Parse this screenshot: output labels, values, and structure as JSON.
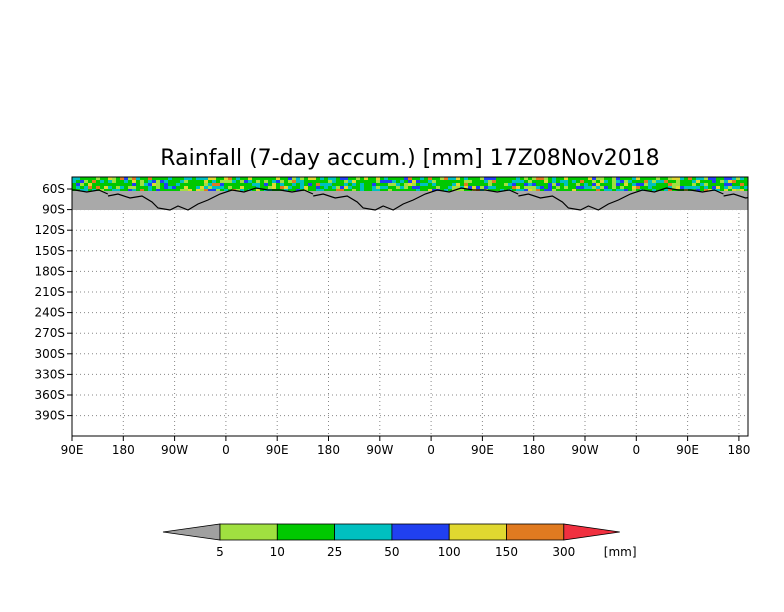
{
  "chart_data": {
    "type": "heatmap",
    "title": "Rainfall (7-day accum.) [mm] 17Z08Nov2018",
    "x_tick_labels": [
      "90E",
      "180",
      "90W",
      "0",
      "90E",
      "180",
      "90W",
      "0",
      "90E",
      "180",
      "90W",
      "0",
      "90E",
      "180"
    ],
    "y_tick_labels": [
      "60S",
      "90S",
      "120S",
      "150S",
      "180S",
      "210S",
      "240S",
      "270S",
      "300S",
      "330S",
      "360S",
      "390S"
    ],
    "y_range": [
      -60,
      -390
    ],
    "grid": true,
    "land_mask_color": "#a9a9a9",
    "colorbar": {
      "boundaries": [
        "5",
        "10",
        "25",
        "50",
        "100",
        "150",
        "300"
      ],
      "unit": "[mm]",
      "colors": [
        "#a0a0a0",
        "#a0e040",
        "#00c800",
        "#00c0c0",
        "#2040f0",
        "#e0d830",
        "#e07a20",
        "#f03040"
      ]
    }
  }
}
